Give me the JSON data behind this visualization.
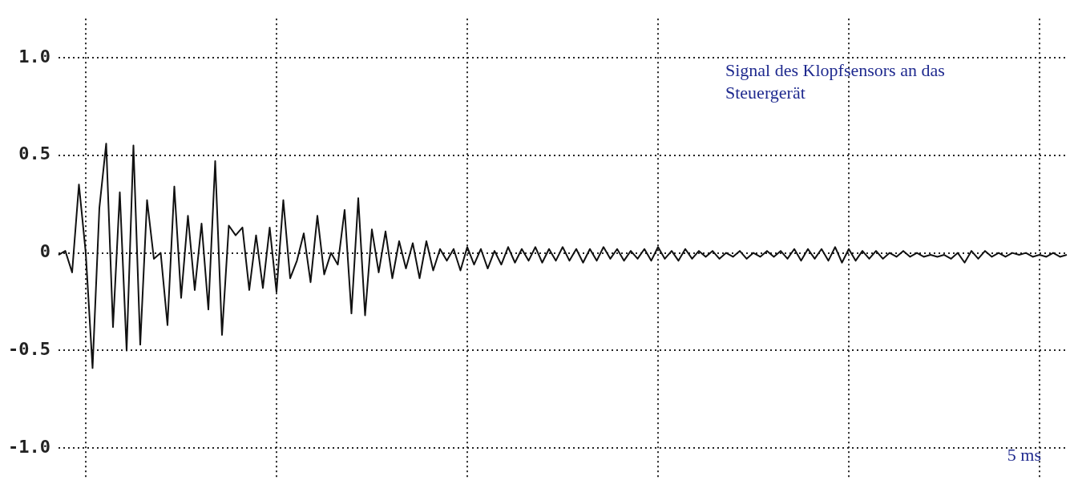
{
  "chart_data": {
    "type": "line",
    "categories": [
      null,
      null,
      null,
      null,
      null,
      null,
      null,
      null,
      null,
      null,
      null,
      null,
      null,
      null,
      null,
      null,
      null,
      null,
      null,
      null,
      null,
      null,
      null,
      null,
      null,
      null,
      null,
      null,
      null,
      null,
      null,
      null,
      null,
      null,
      null,
      null,
      null,
      null,
      null,
      null,
      null,
      null,
      null,
      null,
      null,
      null,
      null,
      null,
      null,
      null,
      null,
      null,
      null,
      null,
      null,
      null,
      null,
      null,
      null,
      null,
      null,
      null,
      null,
      null,
      null,
      null,
      null,
      null,
      null,
      null,
      null,
      null,
      null,
      null,
      null,
      null,
      null,
      null,
      null,
      null,
      null,
      null,
      null,
      null,
      null,
      null,
      null,
      null,
      null,
      null,
      null,
      null,
      null,
      null,
      null,
      null,
      null,
      null,
      null,
      null,
      null,
      null,
      null,
      null,
      null,
      null,
      null,
      null,
      null,
      null,
      null,
      null,
      null,
      null,
      null,
      null,
      null,
      null,
      null,
      null,
      null,
      null,
      null,
      null,
      null,
      null,
      null,
      null,
      null,
      null,
      null,
      null,
      null,
      null,
      null,
      null,
      null,
      null,
      null,
      null,
      null,
      null,
      null,
      null,
      null,
      null,
      null,
      null,
      null
    ],
    "series": [
      {
        "color": "#111111",
        "values": [
          -0.01,
          0.01,
          -0.1,
          0.35,
          0.0,
          -0.59,
          0.23,
          0.56,
          -0.38,
          0.31,
          -0.5,
          0.55,
          -0.47,
          0.27,
          -0.03,
          0.0,
          -0.37,
          0.34,
          -0.23,
          0.19,
          -0.19,
          0.15,
          -0.29,
          0.47,
          -0.42,
          0.14,
          0.09,
          0.13,
          -0.19,
          0.09,
          -0.18,
          0.13,
          -0.2,
          0.27,
          -0.13,
          -0.04,
          0.1,
          -0.15,
          0.19,
          -0.11,
          0.0,
          -0.06,
          0.22,
          -0.31,
          0.28,
          -0.32,
          0.12,
          -0.1,
          0.11,
          -0.13,
          0.06,
          -0.08,
          0.05,
          -0.13,
          0.06,
          -0.09,
          0.02,
          -0.04,
          0.02,
          -0.09,
          0.03,
          -0.06,
          0.02,
          -0.08,
          0.01,
          -0.06,
          0.03,
          -0.05,
          0.02,
          -0.04,
          0.03,
          -0.05,
          0.02,
          -0.04,
          0.03,
          -0.04,
          0.02,
          -0.05,
          0.02,
          -0.04,
          0.03,
          -0.03,
          0.02,
          -0.04,
          0.01,
          -0.03,
          0.02,
          -0.04,
          0.03,
          -0.03,
          0.01,
          -0.04,
          0.02,
          -0.03,
          0.01,
          -0.02,
          0.01,
          -0.03,
          0.0,
          -0.02,
          0.01,
          -0.03,
          0.0,
          -0.02,
          0.01,
          -0.02,
          0.01,
          -0.03,
          0.02,
          -0.04,
          0.02,
          -0.03,
          0.02,
          -0.04,
          0.03,
          -0.05,
          0.02,
          -0.04,
          0.01,
          -0.03,
          0.01,
          -0.03,
          0.0,
          -0.02,
          0.01,
          -0.02,
          0.0,
          -0.02,
          -0.01,
          -0.02,
          -0.01,
          -0.03,
          0.0,
          -0.05,
          0.01,
          -0.03,
          0.01,
          -0.02,
          0.0,
          -0.02,
          0.0,
          -0.01,
          0.0,
          -0.02,
          -0.01,
          -0.02,
          0.0,
          -0.02,
          -0.01
        ]
      }
    ],
    "ylim": [
      -1.15,
      1.2
    ],
    "yticks": [
      {
        "value": -1,
        "label": "-1.0"
      },
      {
        "value": -0.5,
        "label": "-0.5"
      },
      {
        "value": 0,
        "label": "0"
      },
      {
        "value": 0.5,
        "label": "0.5"
      },
      {
        "value": 1,
        "label": "1.0"
      }
    ],
    "tick_labels": "y",
    "grid": true,
    "marker": "none",
    "line_style": "solid",
    "legend": false,
    "annotations": [
      "Signal des Klopfsensors an das Steuergerät",
      "5 ms"
    ]
  }
}
